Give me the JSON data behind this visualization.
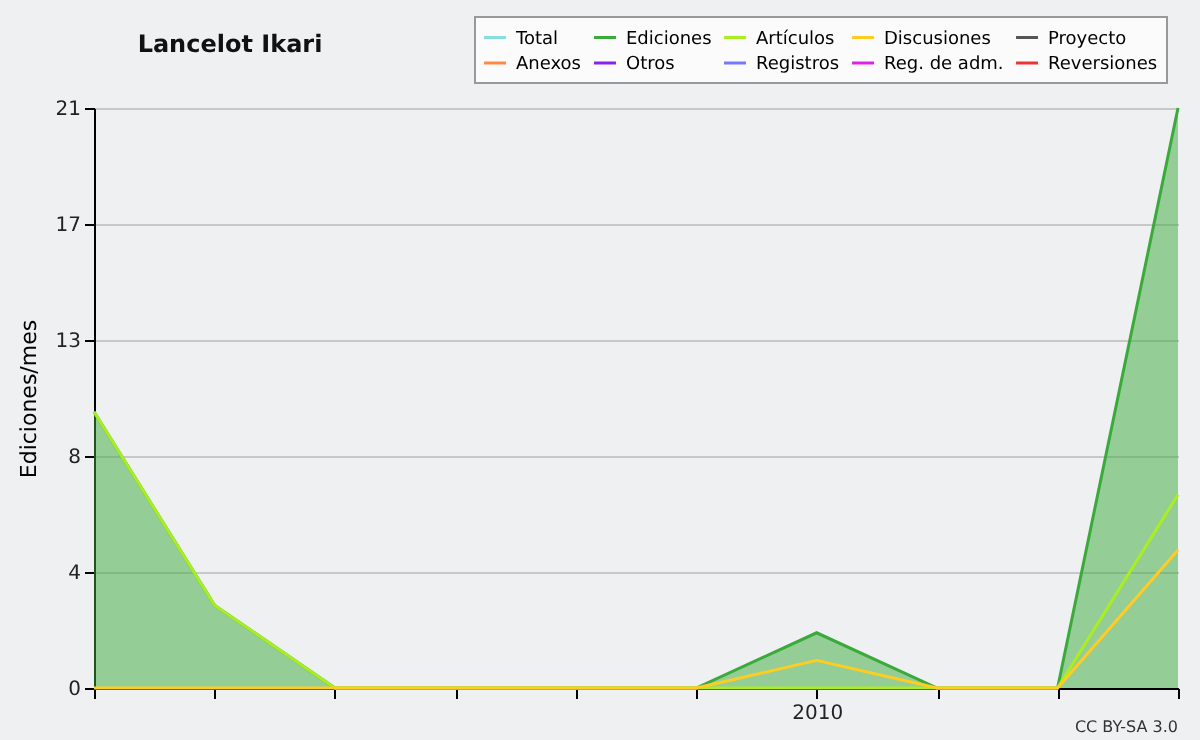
{
  "chart_data": {
    "type": "line",
    "title": "Lancelot Ikari",
    "ylabel": "Ediciones/mes",
    "categories": [
      null,
      null,
      null,
      null,
      null,
      null,
      "2010",
      null,
      null,
      null
    ],
    "ylim": [
      0,
      21
    ],
    "yticks": [
      {
        "value": 0,
        "label": "0"
      },
      {
        "value": 4.2,
        "label": "4"
      },
      {
        "value": 8.4,
        "label": "8"
      },
      {
        "value": 12.6,
        "label": "13"
      },
      {
        "value": 16.8,
        "label": "17"
      },
      {
        "value": 21,
        "label": "21"
      }
    ],
    "grid": "y",
    "legend": "top right",
    "annotations": [
      "CC BY-SA 3.0"
    ],
    "series": [
      {
        "name": "Total",
        "color": "#88dddd",
        "values": [
          null,
          null,
          null,
          null,
          null,
          null,
          null,
          null,
          null,
          null
        ]
      },
      {
        "name": "Ediciones",
        "color": "#3aaa3a",
        "type": "area",
        "values": [
          10,
          3,
          0,
          0,
          0,
          0,
          2,
          0,
          0,
          21
        ]
      },
      {
        "name": "Artículos",
        "color": "#aaee22",
        "values": [
          10,
          3,
          0,
          0,
          0,
          0,
          0,
          0,
          0,
          7
        ]
      },
      {
        "name": "Discusiones",
        "color": "#ffcc22",
        "values": [
          0,
          0,
          0,
          0,
          0,
          0,
          1,
          0,
          0,
          5
        ]
      },
      {
        "name": "Proyecto",
        "color": "#555555",
        "values": [
          null,
          null,
          null,
          null,
          null,
          null,
          null,
          null,
          null,
          null
        ]
      },
      {
        "name": "Anexos",
        "color": "#ff8844",
        "values": [
          null,
          null,
          null,
          null,
          null,
          null,
          null,
          null,
          null,
          null
        ]
      },
      {
        "name": "Otros",
        "color": "#8822ee",
        "values": [
          null,
          null,
          null,
          null,
          null,
          null,
          null,
          null,
          null,
          null
        ]
      },
      {
        "name": "Registros",
        "color": "#7777ff",
        "values": [
          null,
          null,
          null,
          null,
          null,
          null,
          null,
          null,
          null,
          null
        ]
      },
      {
        "name": "Reg. de adm.",
        "color": "#dd22ee",
        "values": [
          null,
          null,
          null,
          null,
          null,
          null,
          null,
          null,
          null,
          null
        ]
      },
      {
        "name": "Reversiones",
        "color": "#ee3333",
        "values": [
          null,
          null,
          null,
          null,
          null,
          null,
          null,
          null,
          null,
          null
        ]
      }
    ]
  }
}
